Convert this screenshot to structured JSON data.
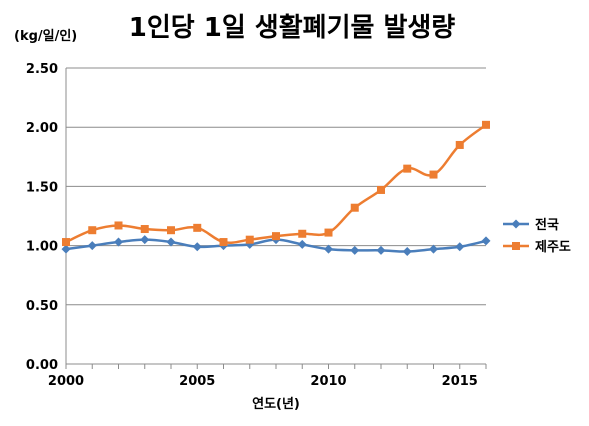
{
  "chart_data": {
    "type": "line",
    "title": "1인당 1일 생활폐기물 발생량",
    "ylabel": "(kg/일/인)",
    "xlabel": "연도(년)",
    "xlim": [
      2000,
      2016
    ],
    "ylim": [
      0,
      2.5
    ],
    "x_ticks": [
      "2000",
      "2005",
      "2010",
      "2015"
    ],
    "y_ticks": [
      "0.00",
      "0.50",
      "1.00",
      "1.50",
      "2.00",
      "2.50"
    ],
    "grid": true,
    "legend_position": "right",
    "x": [
      2000,
      2001,
      2002,
      2003,
      2004,
      2005,
      2006,
      2007,
      2008,
      2009,
      2010,
      2011,
      2012,
      2013,
      2014,
      2015,
      2016
    ],
    "series": [
      {
        "name": "전국",
        "color": "#4a7ebb",
        "marker": "diamond",
        "values": [
          0.97,
          1.0,
          1.03,
          1.05,
          1.03,
          0.99,
          1.0,
          1.01,
          1.05,
          1.01,
          0.97,
          0.96,
          0.96,
          0.95,
          0.97,
          0.99,
          1.04
        ]
      },
      {
        "name": "제주도",
        "color": "#ed7d31",
        "marker": "square",
        "values": [
          1.03,
          1.13,
          1.17,
          1.14,
          1.13,
          1.15,
          1.03,
          1.05,
          1.08,
          1.1,
          1.11,
          1.32,
          1.47,
          1.65,
          1.6,
          1.85,
          2.02
        ]
      }
    ]
  }
}
